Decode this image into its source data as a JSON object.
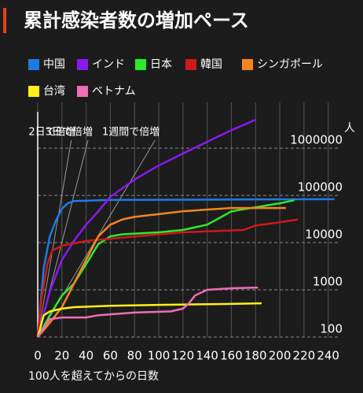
{
  "chart_data": {
    "type": "line",
    "title": "累計感染者数の増加ペース",
    "x_label": "100人を超えてからの日数",
    "y_label": "人",
    "log_y": true,
    "grid": true,
    "xlim": [
      0,
      248
    ],
    "xticks": [
      0,
      20,
      40,
      60,
      80,
      100,
      120,
      140,
      160,
      180,
      200,
      220,
      240
    ],
    "ylim": [
      100,
      4000000
    ],
    "yticks": [
      100,
      1000,
      10000,
      100000,
      1000000
    ],
    "reference_lines": [
      {
        "label": "2日で倍増",
        "doubling_days": 2
      },
      {
        "label": "3日で倍増",
        "doubling_days": 3
      },
      {
        "label": "1週間で倍増",
        "doubling_days": 7
      }
    ],
    "series": [
      {
        "name": "中国",
        "color": "#1e7be6",
        "x": [
          0,
          5,
          10,
          15,
          20,
          25,
          30,
          60,
          245
        ],
        "values": [
          100,
          2930,
          13500,
          29000,
          52000,
          68000,
          76000,
          80000,
          83000
        ]
      },
      {
        "name": "インド",
        "color": "#8a19f0",
        "x": [
          0,
          10,
          20,
          30,
          40,
          50,
          60,
          80,
          100,
          120,
          140,
          160,
          180
        ],
        "values": [
          100,
          930,
          4300,
          11000,
          24000,
          46000,
          93000,
          215000,
          430000,
          770000,
          1360000,
          2400000,
          4000000
        ]
      },
      {
        "name": "日本",
        "color": "#2ee82e",
        "x": [
          0,
          10,
          20,
          30,
          40,
          50,
          60,
          70,
          100,
          120,
          140,
          150,
          160,
          180,
          200,
          212
        ],
        "values": [
          100,
          290,
          760,
          1360,
          3500,
          9200,
          13500,
          15000,
          16500,
          18500,
          24000,
          33000,
          46000,
          56000,
          68000,
          79000
        ]
      },
      {
        "name": "韓国",
        "color": "#cc1a1a",
        "x": [
          0,
          3,
          8,
          12,
          20,
          40,
          80,
          120,
          170,
          180,
          200,
          215
        ],
        "values": [
          100,
          630,
          3500,
          6800,
          8600,
          10800,
          13500,
          16500,
          18500,
          23000,
          27000,
          31000
        ]
      },
      {
        "name": "シンガポール",
        "color": "#f5841e",
        "x": [
          0,
          10,
          20,
          30,
          40,
          50,
          60,
          70,
          80,
          100,
          120,
          140,
          160,
          180,
          205
        ],
        "values": [
          100,
          200,
          430,
          1360,
          4300,
          13500,
          24000,
          31000,
          35000,
          40000,
          46000,
          50000,
          54000,
          54000,
          54000
        ]
      },
      {
        "name": "台湾",
        "color": "#ffef1a",
        "x": [
          0,
          5,
          10,
          20,
          30,
          60,
          100,
          150,
          185
        ],
        "values": [
          100,
          290,
          350,
          400,
          430,
          460,
          480,
          500,
          520
        ]
      },
      {
        "name": "ベトナム",
        "color": "#f06eb4",
        "x": [
          0,
          10,
          20,
          40,
          50,
          80,
          110,
          120,
          125,
          130,
          140,
          160,
          182
        ],
        "values": [
          100,
          240,
          260,
          260,
          290,
          330,
          350,
          400,
          520,
          760,
          1000,
          1080,
          1120
        ]
      }
    ]
  }
}
